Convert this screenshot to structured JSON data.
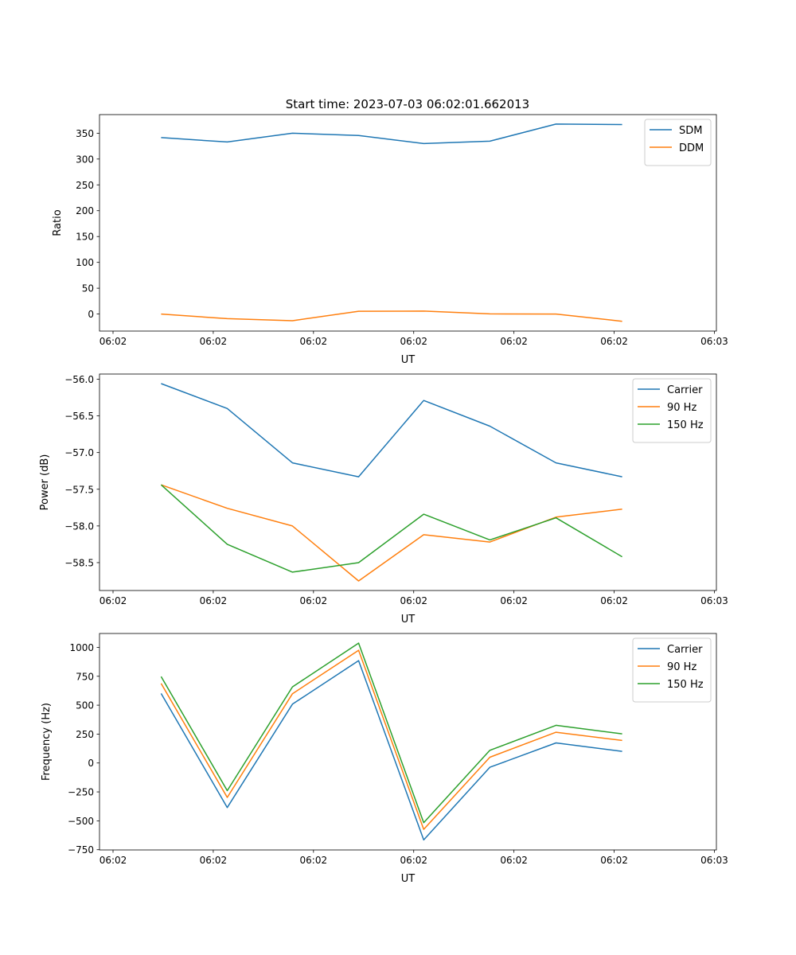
{
  "title": "Start time: 2023-07-03 06:02:01.662013",
  "chart_data": [
    {
      "type": "line",
      "title": "Start time: 2023-07-03 06:02:01.662013",
      "xlabel": "UT",
      "ylabel": "Ratio",
      "x_unit": "seconds after 06:02:00",
      "x": [
        4.8,
        11.4,
        17.9,
        24.5,
        31.0,
        37.6,
        44.2,
        50.8
      ],
      "xlim": [
        -1.35,
        60.2
      ],
      "xticks": [
        0,
        10,
        20,
        30,
        40,
        50,
        60
      ],
      "xtick_labels": [
        "06:02",
        "06:02",
        "06:02",
        "06:02",
        "06:02",
        "06:02",
        "06:03"
      ],
      "ylim": [
        -33,
        386
      ],
      "yticks": [
        0,
        50,
        100,
        150,
        200,
        250,
        300,
        350
      ],
      "ytick_labels": [
        "0",
        "50",
        "100",
        "150",
        "200",
        "250",
        "300",
        "350"
      ],
      "legend": "top-right",
      "series": [
        {
          "name": "SDM",
          "color": "#1f77b4",
          "values": [
            341.5,
            333,
            350,
            345.5,
            330,
            334.5,
            367.6,
            366.8
          ]
        },
        {
          "name": "DDM",
          "color": "#ff7f0e",
          "values": [
            0,
            -9,
            -13,
            5.4,
            5.6,
            0.3,
            0,
            -14
          ]
        }
      ]
    },
    {
      "type": "line",
      "xlabel": "UT",
      "ylabel": "Power (dB)",
      "x_unit": "seconds after 06:02:00",
      "x": [
        4.8,
        11.4,
        17.9,
        24.5,
        31.0,
        37.6,
        44.2,
        50.8
      ],
      "xlim": [
        -1.35,
        60.2
      ],
      "xticks": [
        0,
        10,
        20,
        30,
        40,
        50,
        60
      ],
      "xtick_labels": [
        "06:02",
        "06:02",
        "06:02",
        "06:02",
        "06:02",
        "06:02",
        "06:03"
      ],
      "ylim": [
        -58.88,
        -55.93
      ],
      "yticks": [
        -56.0,
        -56.5,
        -57.0,
        -57.5,
        -58.0,
        -58.5
      ],
      "ytick_labels": [
        "−56.0",
        "−56.5",
        "−57.0",
        "−57.5",
        "−58.0",
        "−58.5"
      ],
      "legend": "top-right",
      "series": [
        {
          "name": "Carrier",
          "color": "#1f77b4",
          "values": [
            -56.06,
            -56.4,
            -57.14,
            -57.33,
            -56.29,
            -56.64,
            -57.14,
            -57.33
          ]
        },
        {
          "name": "90 Hz",
          "color": "#ff7f0e",
          "values": [
            -57.44,
            -57.76,
            -58.0,
            -58.75,
            -58.12,
            -58.22,
            -57.88,
            -57.77
          ]
        },
        {
          "name": "150 Hz",
          "color": "#2ca02c",
          "values": [
            -57.44,
            -58.25,
            -58.63,
            -58.5,
            -57.84,
            -58.19,
            -57.89,
            -58.42
          ]
        }
      ]
    },
    {
      "type": "line",
      "xlabel": "UT",
      "ylabel": "Frequency (Hz)",
      "x_unit": "seconds after 06:02:00",
      "x": [
        4.8,
        11.4,
        17.9,
        24.5,
        31.0,
        37.6,
        44.2,
        50.8
      ],
      "xlim": [
        -1.35,
        60.2
      ],
      "xticks": [
        0,
        10,
        20,
        30,
        40,
        50,
        60
      ],
      "xtick_labels": [
        "06:02",
        "06:02",
        "06:02",
        "06:02",
        "06:02",
        "06:02",
        "06:03"
      ],
      "ylim": [
        -752,
        1120
      ],
      "yticks": [
        -750,
        -500,
        -250,
        0,
        250,
        500,
        750,
        1000
      ],
      "ytick_labels": [
        "−750",
        "−500",
        "−250",
        "0",
        "250",
        "500",
        "750",
        "1000"
      ],
      "legend": "top-right",
      "series": [
        {
          "name": "Carrier",
          "color": "#1f77b4",
          "values": [
            601,
            -385,
            509,
            885,
            -665,
            -37,
            174,
            101
          ]
        },
        {
          "name": "90 Hz",
          "color": "#ff7f0e",
          "values": [
            688,
            -298,
            599,
            975,
            -574,
            50,
            266,
            195
          ]
        },
        {
          "name": "150 Hz",
          "color": "#2ca02c",
          "values": [
            748,
            -239,
            658,
            1037,
            -516,
            110,
            326,
            252
          ]
        }
      ]
    }
  ]
}
